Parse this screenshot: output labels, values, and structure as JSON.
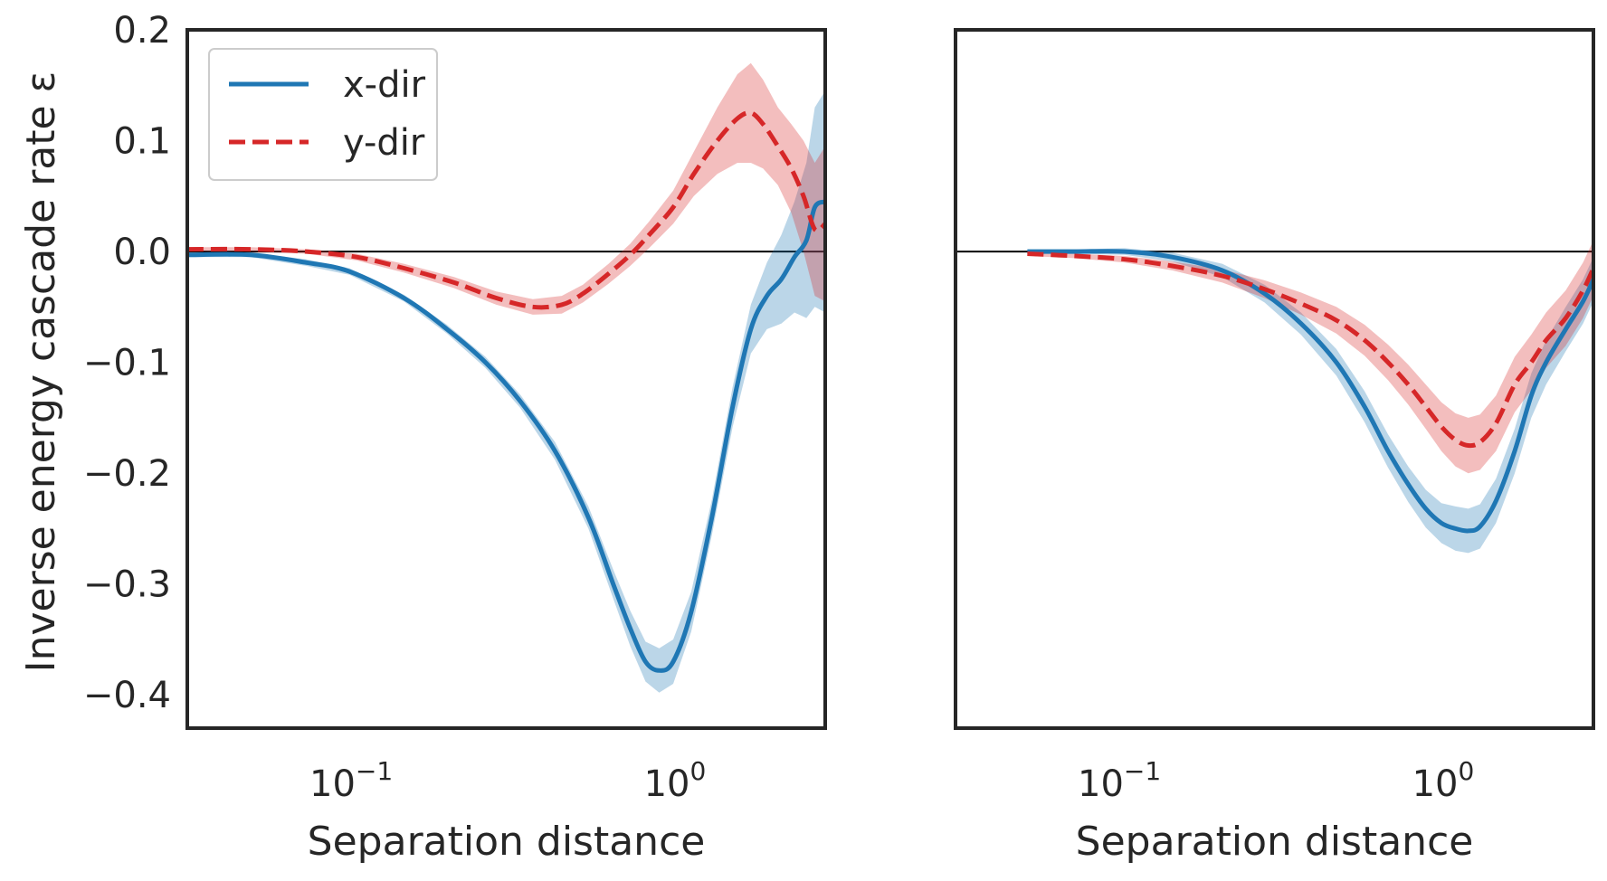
{
  "chart_data": [
    {
      "type": "line",
      "panel": "left",
      "xscale": "log",
      "xlim": [
        0.03,
        2.8
      ],
      "ylim": [
        -0.43,
        0.2
      ],
      "xlabel": "Separation distance",
      "ylabel": "Inverse energy cascade rate ε",
      "yticks": [
        "0.2",
        "0.1",
        "0.0",
        "−0.1",
        "−0.2",
        "−0.3",
        "−0.4"
      ],
      "ytick_values": [
        0.2,
        0.1,
        0.0,
        -0.1,
        -0.2,
        -0.3,
        -0.4
      ],
      "xticks": [
        {
          "base": "10",
          "exp": "−1",
          "value": 0.1
        },
        {
          "base": "10",
          "exp": "0",
          "value": 1
        }
      ],
      "hline": 0,
      "legend": {
        "placement": "top-left",
        "entries": [
          "x-dir",
          "y-dir"
        ]
      },
      "series": [
        {
          "name": "x-dir",
          "color": "#1f77b4",
          "style": "solid",
          "x": [
            0.03,
            0.047,
            0.07,
            0.095,
            0.14,
            0.19,
            0.25,
            0.32,
            0.41,
            0.52,
            0.62,
            0.7,
            0.78,
            0.86,
            0.95,
            1.08,
            1.25,
            1.45,
            1.65,
            1.85,
            2.05,
            2.25,
            2.45,
            2.6,
            2.8
          ],
          "y": [
            -0.003,
            -0.003,
            -0.01,
            -0.018,
            -0.042,
            -0.07,
            -0.1,
            -0.135,
            -0.18,
            -0.24,
            -0.3,
            -0.34,
            -0.37,
            -0.378,
            -0.37,
            -0.325,
            -0.24,
            -0.14,
            -0.07,
            -0.04,
            -0.025,
            -0.005,
            0.01,
            0.04,
            0.045
          ],
          "band": [
            0.002,
            0.002,
            0.003,
            0.003,
            0.003,
            0.004,
            0.005,
            0.006,
            0.008,
            0.01,
            0.013,
            0.016,
            0.018,
            0.02,
            0.02,
            0.018,
            0.016,
            0.018,
            0.022,
            0.03,
            0.04,
            0.05,
            0.07,
            0.09,
            0.1
          ]
        },
        {
          "name": "y-dir",
          "color": "#d62728",
          "style": "dashed",
          "x": [
            0.03,
            0.047,
            0.07,
            0.1,
            0.14,
            0.2,
            0.27,
            0.35,
            0.43,
            0.5,
            0.6,
            0.7,
            0.8,
            0.95,
            1.1,
            1.3,
            1.5,
            1.65,
            1.8,
            2.0,
            2.2,
            2.4,
            2.6,
            2.8
          ],
          "y": [
            0.002,
            0.002,
            0.0,
            -0.005,
            -0.015,
            -0.028,
            -0.042,
            -0.05,
            -0.048,
            -0.038,
            -0.02,
            -0.003,
            0.015,
            0.04,
            0.07,
            0.1,
            0.12,
            0.125,
            0.115,
            0.095,
            0.075,
            0.05,
            0.02,
            0.025
          ],
          "band": [
            0.002,
            0.002,
            0.002,
            0.003,
            0.004,
            0.005,
            0.006,
            0.007,
            0.008,
            0.008,
            0.009,
            0.01,
            0.012,
            0.015,
            0.02,
            0.03,
            0.04,
            0.045,
            0.04,
            0.035,
            0.04,
            0.05,
            0.06,
            0.07
          ]
        }
      ]
    },
    {
      "type": "line",
      "panel": "right",
      "xscale": "log",
      "xlim": [
        0.03,
        2.8
      ],
      "ylim": [
        -0.43,
        0.2
      ],
      "xlabel": "Separation distance",
      "xticks": [
        {
          "base": "10",
          "exp": "−1",
          "value": 0.1
        },
        {
          "base": "10",
          "exp": "0",
          "value": 1
        }
      ],
      "hline": 0,
      "series": [
        {
          "name": "x-dir",
          "color": "#1f77b4",
          "style": "solid",
          "x": [
            0.05,
            0.07,
            0.1,
            0.14,
            0.2,
            0.27,
            0.35,
            0.45,
            0.55,
            0.65,
            0.75,
            0.85,
            0.95,
            1.05,
            1.15,
            1.25,
            1.4,
            1.6,
            1.8,
            2.0,
            2.3,
            2.6,
            2.8
          ],
          "y": [
            0.0,
            0.0,
            0.0,
            -0.005,
            -0.017,
            -0.038,
            -0.065,
            -0.1,
            -0.14,
            -0.18,
            -0.21,
            -0.232,
            -0.245,
            -0.25,
            -0.252,
            -0.248,
            -0.225,
            -0.18,
            -0.13,
            -0.1,
            -0.07,
            -0.045,
            -0.025
          ],
          "band": [
            0.002,
            0.002,
            0.003,
            0.004,
            0.006,
            0.008,
            0.01,
            0.012,
            0.014,
            0.015,
            0.016,
            0.017,
            0.018,
            0.02,
            0.02,
            0.02,
            0.02,
            0.02,
            0.02,
            0.02,
            0.02,
            0.02,
            0.02
          ]
        },
        {
          "name": "y-dir",
          "color": "#d62728",
          "style": "dashed",
          "x": [
            0.05,
            0.07,
            0.1,
            0.14,
            0.2,
            0.27,
            0.35,
            0.45,
            0.55,
            0.65,
            0.75,
            0.85,
            0.95,
            1.05,
            1.15,
            1.25,
            1.4,
            1.6,
            1.8,
            2.0,
            2.3,
            2.6,
            2.8
          ],
          "y": [
            -0.002,
            -0.004,
            -0.007,
            -0.013,
            -0.022,
            -0.034,
            -0.047,
            -0.062,
            -0.08,
            -0.1,
            -0.12,
            -0.14,
            -0.158,
            -0.17,
            -0.175,
            -0.172,
            -0.155,
            -0.12,
            -0.1,
            -0.08,
            -0.06,
            -0.035,
            -0.015
          ],
          "band": [
            0.002,
            0.002,
            0.003,
            0.004,
            0.006,
            0.008,
            0.01,
            0.012,
            0.014,
            0.016,
            0.018,
            0.02,
            0.022,
            0.024,
            0.025,
            0.025,
            0.025,
            0.025,
            0.025,
            0.025,
            0.025,
            0.025,
            0.025
          ]
        }
      ]
    }
  ]
}
